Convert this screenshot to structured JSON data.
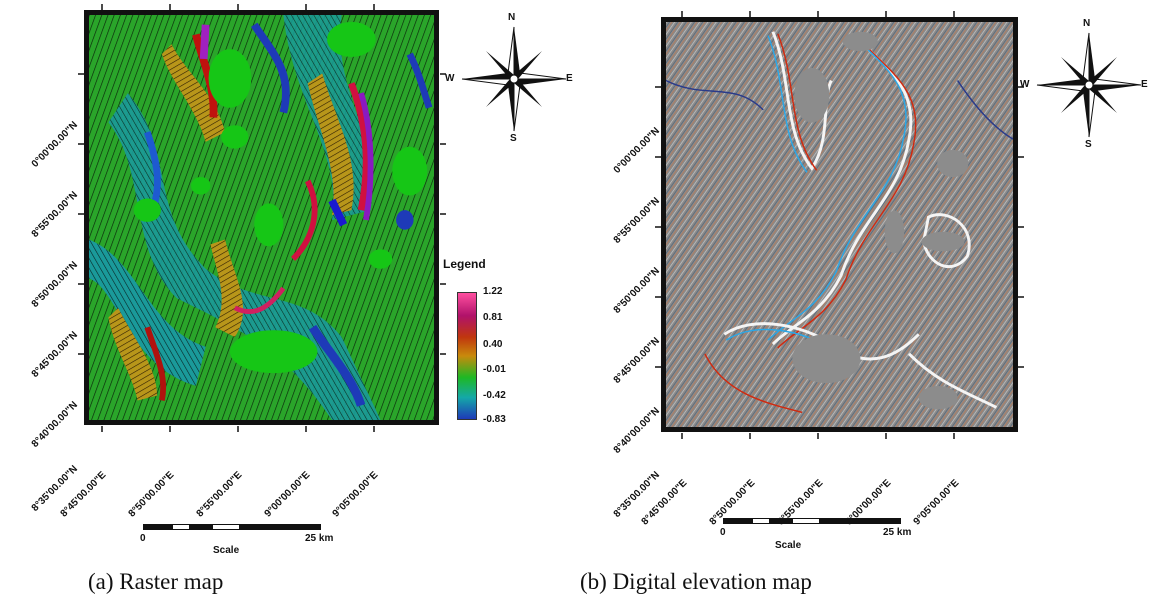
{
  "panel_a": {
    "y_ticks": [
      "0°00'00.00\"N",
      "8°55'00.00\"N",
      "8°50'00.00\"N",
      "8°45'00.00\"N",
      "8°40'00.00\"N",
      "8°35'00.00\"N"
    ],
    "x_ticks": [
      "8°45'00.00\"E",
      "8°50'00.00\"E",
      "8°55'00.00\"E",
      "9°00'00.00\"E",
      "9°05'00.00\"E"
    ],
    "compass": {
      "n": "N",
      "s": "S",
      "e": "E",
      "w": "W"
    },
    "legend": {
      "title": "Legend",
      "values": [
        "1.22",
        "0.81",
        "0.40",
        "-0.01",
        "-0.42",
        "-0.83"
      ],
      "colors": [
        "#ff4fa0",
        "#b0126a",
        "#c0360e",
        "#c88a0c",
        "#1eb824",
        "#14a8a8",
        "#1e3ab8"
      ]
    },
    "scale": {
      "start": "0",
      "end": "25 km",
      "label": "Scale"
    },
    "caption": "(a) Raster map"
  },
  "panel_b": {
    "y_ticks": [
      "0°00'00.00\"N",
      "8°55'00.00\"N",
      "8°50'00.00\"N",
      "8°45'00.00\"N",
      "8°40'00.00\"N",
      "8°35'00.00\"N"
    ],
    "x_ticks": [
      "8°45'00.00\"E",
      "8°50'00.00\"E",
      "8°55'00.00\"E",
      "9°00'00.00\"E",
      "9°05'00.00\"E"
    ],
    "compass": {
      "n": "N",
      "s": "S",
      "e": "E",
      "w": "W"
    },
    "scale": {
      "start": "0",
      "end": "25 km",
      "label": "Scale"
    },
    "caption": "(b) Digital elevation map"
  }
}
